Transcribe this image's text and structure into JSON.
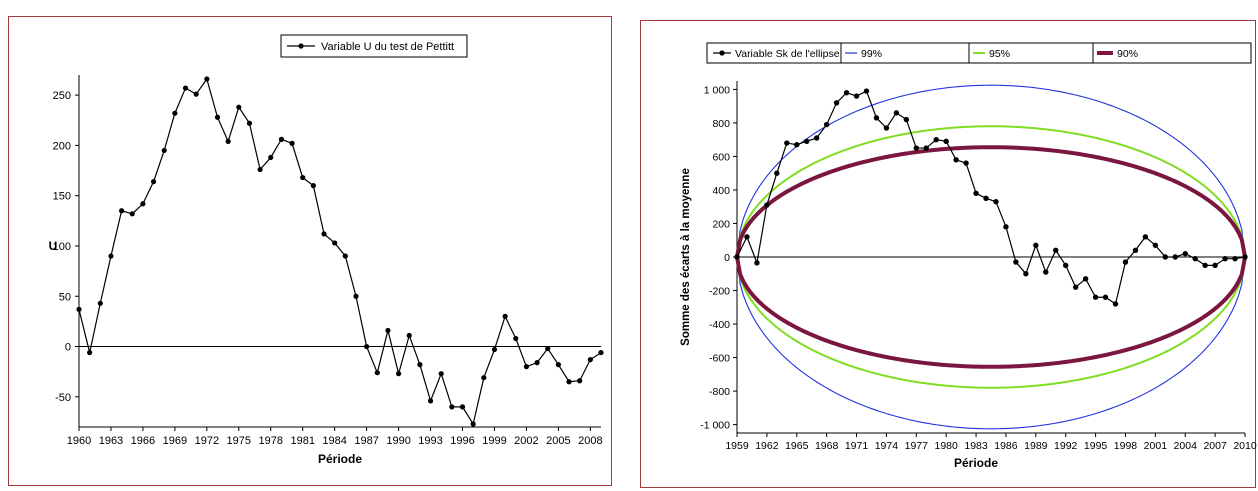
{
  "chart_data": [
    {
      "type": "line",
      "legend": [
        "Variable U du test de Pettitt"
      ],
      "xlabel": "Période",
      "ylabel": "U",
      "xlim": [
        1960,
        2009
      ],
      "ylim": [
        -80,
        270
      ],
      "xticks": [
        "1960",
        "1963",
        "1966",
        "1969",
        "1972",
        "1975",
        "1978",
        "1981",
        "1984",
        "1987",
        "1990",
        "1993",
        "1996",
        "1999",
        "2002",
        "2005",
        "2008"
      ],
      "yticks": [
        "250",
        "200",
        "150",
        "100",
        "50",
        "0",
        "-50"
      ],
      "grid": false,
      "legend_position": "top-center",
      "colors": {
        "series": "#000000"
      },
      "series": [
        {
          "name": "Variable U du test de Pettitt",
          "x": [
            1960,
            1961,
            1962,
            1963,
            1964,
            1965,
            1966,
            1967,
            1968,
            1969,
            1970,
            1971,
            1972,
            1973,
            1974,
            1975,
            1976,
            1977,
            1978,
            1979,
            1980,
            1981,
            1982,
            1983,
            1984,
            1985,
            1986,
            1987,
            1988,
            1989,
            1990,
            1991,
            1992,
            1993,
            1994,
            1995,
            1996,
            1997,
            1998,
            1999,
            2000,
            2001,
            2002,
            2003,
            2004,
            2005,
            2006,
            2007,
            2008,
            2009
          ],
          "values": [
            37,
            -6,
            43,
            90,
            135,
            132,
            142,
            164,
            195,
            232,
            257,
            251,
            266,
            228,
            204,
            238,
            222,
            176,
            188,
            206,
            202,
            168,
            160,
            112,
            103,
            90,
            50,
            0,
            -26,
            16,
            -27,
            11,
            -18,
            -54,
            -27,
            -60,
            -60,
            -77,
            -31,
            -3,
            30,
            8,
            -20,
            -16,
            -2,
            -18,
            -35,
            -34,
            -13,
            -6
          ]
        }
      ]
    },
    {
      "type": "line",
      "legend": [
        "Variable Sk de l'ellipse",
        "99%",
        "95%",
        "90%"
      ],
      "xlabel": "Période",
      "ylabel": "Somme des écarts à la moyenne",
      "xlim": [
        1959,
        2010
      ],
      "ylim": [
        -1050,
        1050
      ],
      "xticks": [
        "1959",
        "1962",
        "1965",
        "1968",
        "1971",
        "1974",
        "1977",
        "1980",
        "1983",
        "1986",
        "1989",
        "1992",
        "1995",
        "1998",
        "2001",
        "2004",
        "2007",
        "2010"
      ],
      "yticks": [
        "1 000",
        "800",
        "600",
        "400",
        "200",
        "0",
        "-200",
        "-400",
        "-600",
        "-800",
        "-1 000"
      ],
      "ytick_values": [
        1000,
        800,
        600,
        400,
        200,
        0,
        -200,
        -400,
        -600,
        -800,
        -1000
      ],
      "grid": false,
      "legend_position": "top",
      "colors": {
        "sk": "#000000",
        "c99": "#2233dd",
        "c95": "#7fdd22",
        "c90": "#7a1640"
      },
      "ellipses": [
        {
          "name": "99%",
          "amplitude": 1025
        },
        {
          "name": "95%",
          "amplitude": 780
        },
        {
          "name": "90%",
          "amplitude": 655
        }
      ],
      "series": [
        {
          "name": "Variable Sk de l'ellipse",
          "x": [
            1959,
            1960,
            1961,
            1962,
            1963,
            1964,
            1965,
            1966,
            1967,
            1968,
            1969,
            1970,
            1971,
            1972,
            1973,
            1974,
            1975,
            1976,
            1977,
            1978,
            1979,
            1980,
            1981,
            1982,
            1983,
            1984,
            1985,
            1986,
            1987,
            1988,
            1989,
            1990,
            1991,
            1992,
            1993,
            1994,
            1995,
            1996,
            1997,
            1998,
            1999,
            2000,
            2001,
            2002,
            2003,
            2004,
            2005,
            2006,
            2007,
            2008,
            2009,
            2010
          ],
          "values": [
            0,
            120,
            -35,
            310,
            500,
            680,
            670,
            690,
            710,
            790,
            920,
            980,
            960,
            990,
            830,
            770,
            860,
            820,
            650,
            650,
            700,
            690,
            580,
            560,
            380,
            350,
            330,
            180,
            -30,
            -100,
            70,
            -90,
            40,
            -50,
            -180,
            -130,
            -240,
            -240,
            -280,
            -30,
            40,
            120,
            70,
            0,
            0,
            20,
            -10,
            -50,
            -50,
            -10,
            -10,
            0
          ]
        }
      ]
    }
  ]
}
